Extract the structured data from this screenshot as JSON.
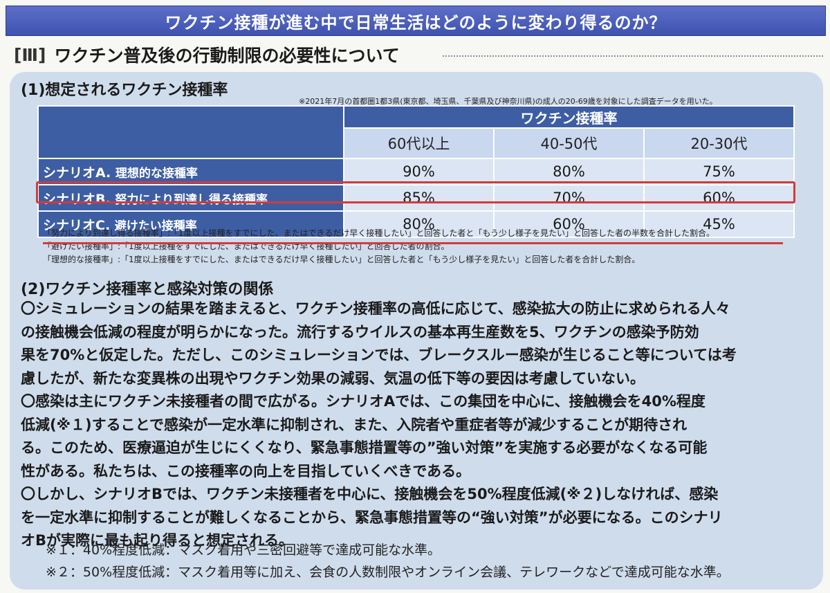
{
  "banner": "ワクチン接種が進む中で日常生活はどのように変わり得るのか？",
  "section": {
    "number": "[Ⅲ]",
    "title": "ワクチン普及後の行動制限の必要性について"
  },
  "part1": {
    "title": "(1)想定されるワクチン接種率",
    "note": "※2021年7月の首都圏1都3県(東京都、埼玉県、千葉県及び神奈川県)の成人の20-69歳を対象にした調査データを用いた。",
    "table": {
      "header": "ワクチン接種率",
      "age_groups": [
        "60代以上",
        "40-50代",
        "20-30代"
      ],
      "rows": [
        {
          "label": "シナリオA.",
          "desc": "理想的な接種率",
          "values": [
            "90%",
            "80%",
            "75%"
          ]
        },
        {
          "label": "シナリオB.",
          "desc": "努力により到達し得る接種率",
          "values": [
            "85%",
            "70%",
            "60%"
          ]
        },
        {
          "label": "シナリオC.",
          "desc": "避けたい接種率",
          "values": [
            "80%",
            "60%",
            "45%"
          ]
        }
      ]
    },
    "footnotes": [
      "「努力により到達し得る接種率」:「1度以上接種をすでにした、またはできるだけ早く接種したい」と回答した者と「もう少し様子を見たい」と回答した者の半数を合計した割合。",
      "「避けたい接種率」:「1度以上接種をすでにした、またはできるだけ早く接種したい」と回答した者の割合。",
      "「理想的な接種率」:「1度以上接種をすでにした、またはできるだけ早く接種したい」と回答した者と「もう少し様子を見たい」と回答した者を合計した割合。"
    ]
  },
  "part2": {
    "title": "(2)ワクチン接種率と感染対策の関係",
    "lines": [
      "〇シミュレーションの結果を踏まえると、ワクチン接種率の高低に応じて、感染拡大の防止に求められる人々",
      "の接触機会低減の程度が明らかになった。流行するウイルスの基本再生産数を5、ワクチンの感染予防効",
      "果を70%と仮定した。ただし、このシミュレーションでは、ブレークスルー感染が生じること等については考",
      "慮したが、新たな変異株の出現やワクチン効果の減弱、気温の低下等の要因は考慮していない。",
      "〇感染は主にワクチン未接種者の間で広がる。シナリオAでは、この集団を中心に、接触機会を40%程度",
      "低減(※１)することで感染が一定水準に抑制され、また、入院者や重症者等が減少することが期待され",
      "る。このため、医療逼迫が生じにくくなり、緊急事態措置等の”強い対策”を実施する必要がなくなる可能",
      "性がある。私たちは、この接種率の向上を目指していくべきである。",
      "〇しかし、シナリオBでは、ワクチン未接種者を中心に、接触機会を50%程度低減(※２)しなければ、感染",
      "を一定水準に抑制することが難しくなることから、緊急事態措置等の“強い対策”が必要になる。このシナリ",
      "オBが実際に最も起り得ると想定される。"
    ],
    "footnote1": "※１：40%程度低減：マスク着用や三密回避等で達成可能な水準。",
    "footnote2": "※２：50%程度低減：マスク着用等に加え、会食の人数制限やオンライン会議、テレワークなどで達成可能な水準。"
  }
}
